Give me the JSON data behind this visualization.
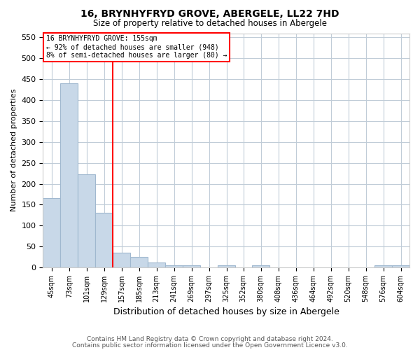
{
  "title1": "16, BRYNHYFRYD GROVE, ABERGELE, LL22 7HD",
  "title2": "Size of property relative to detached houses in Abergele",
  "xlabel": "Distribution of detached houses by size in Abergele",
  "ylabel": "Number of detached properties",
  "bins": [
    45,
    73,
    101,
    129,
    157,
    185,
    213,
    241,
    269,
    297,
    325,
    352,
    380,
    408,
    436,
    464,
    492,
    520,
    548,
    576,
    604
  ],
  "heights": [
    165,
    441,
    222,
    130,
    36,
    25,
    11,
    5,
    5,
    0,
    5,
    0,
    5,
    0,
    0,
    0,
    0,
    0,
    0,
    5,
    5
  ],
  "bar_color": "#c8d8e8",
  "bar_edgecolor": "#a0b8cf",
  "redline_x": 157,
  "annotation_line1": "16 BRYNHYFRYD GROVE: 155sqm",
  "annotation_line2": "← 92% of detached houses are smaller (948)",
  "annotation_line3": "8% of semi-detached houses are larger (80) →",
  "ylim": [
    0,
    560
  ],
  "yticks": [
    0,
    50,
    100,
    150,
    200,
    250,
    300,
    350,
    400,
    450,
    500,
    550
  ],
  "footer1": "Contains HM Land Registry data © Crown copyright and database right 2024.",
  "footer2": "Contains public sector information licensed under the Open Government Licence v3.0.",
  "bg_color": "#ffffff",
  "grid_color": "#c0ccd8"
}
